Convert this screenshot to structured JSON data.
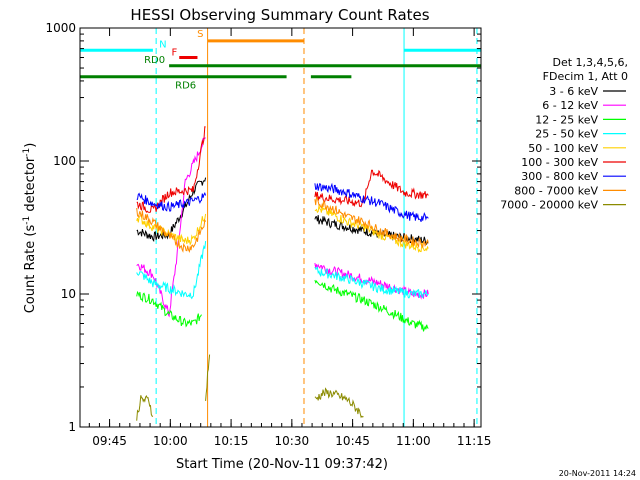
{
  "chart_data": {
    "type": "line",
    "title": "HESSI Observing Summary Count Rates",
    "xlabel": "Start Time (20-Nov-11 09:37:42)",
    "ylabel_prefix": "Count Rate (s",
    "ylabel_mid": " detector",
    "ylabel_suffix": ")",
    "ylabel_sup": "-1",
    "y_scale": "log",
    "ylim": [
      1,
      1000
    ],
    "y_tick_labels": [
      "1",
      "10",
      "100",
      "1000"
    ],
    "x_tick_labels": [
      "09:45",
      "10:00",
      "10:15",
      "10:30",
      "10:45",
      "11:00",
      "11:15"
    ],
    "x_range_minutes": [
      0,
      99
    ],
    "x_tick_minutes": [
      7.3,
      22.3,
      37.3,
      52.3,
      67.3,
      82.3,
      97.3
    ],
    "footer_timestamp": "20-Nov-2011 14:24",
    "legend": {
      "header_line1": "Det 1,3,4,5,6,",
      "header_line2": "FDecim 1, Att 0",
      "entries": [
        {
          "name": "3 - 6 keV",
          "color": "#000000"
        },
        {
          "name": "6 - 12 keV",
          "color": "#ff00ff"
        },
        {
          "name": "12 - 25 keV",
          "color": "#00ff00"
        },
        {
          "name": "25 - 50 keV",
          "color": "#00ffff"
        },
        {
          "name": "50 - 100 keV",
          "color": "#ffd000"
        },
        {
          "name": "100 - 300 keV",
          "color": "#ee0000"
        },
        {
          "name": "300 - 800 keV",
          "color": "#0000ff"
        },
        {
          "name": "800 - 7000 keV",
          "color": "#ff8c00"
        },
        {
          "name": "7000 - 20000 keV",
          "color": "#8b8b00"
        }
      ]
    },
    "flag_bars": [
      {
        "label": "N",
        "color": "#00ffff",
        "y": 680,
        "segments": [
          [
            0,
            18
          ],
          [
            80,
            99
          ]
        ]
      },
      {
        "label": "RD0",
        "color": "#008000",
        "y": 520,
        "segments": [
          [
            22,
            99
          ]
        ]
      },
      {
        "label": "RD6",
        "color": "#008000",
        "y": 430,
        "segments": [
          [
            0,
            51
          ],
          [
            57,
            67
          ]
        ]
      },
      {
        "label": "S",
        "color": "#ff8c00",
        "y": 800,
        "segments": [
          [
            31.5,
            55.3
          ]
        ]
      },
      {
        "label": "F",
        "color": "#ee0000",
        "y": 600,
        "segments": [
          [
            24.5,
            29
          ]
        ]
      }
    ],
    "vertical_markers": [
      {
        "minute": 18.8,
        "color": "#00ffff",
        "style": "dashed"
      },
      {
        "minute": 31.5,
        "color": "#ff8c00",
        "style": "solid"
      },
      {
        "minute": 55.3,
        "color": "#ff8c00",
        "style": "dashed"
      },
      {
        "minute": 80.0,
        "color": "#00ffff",
        "style": "solid"
      },
      {
        "minute": 98.0,
        "color": "#00ffff",
        "style": "dashed"
      }
    ],
    "series": [
      {
        "name": "3 - 6 keV",
        "color": "#000000",
        "segments": [
          {
            "t": [
              14,
              18,
              22,
              26,
              28,
              31
            ],
            "v": [
              30,
              27,
              28,
              45,
              60,
              75
            ]
          },
          {
            "t": [
              58,
              62,
              66,
              70,
              74,
              78,
              82,
              86
            ],
            "v": [
              37,
              34,
              32,
              30,
              28,
              27,
              26,
              25
            ]
          }
        ]
      },
      {
        "name": "6 - 12 keV",
        "color": "#ff00ff",
        "segments": [
          {
            "t": [
              14,
              18,
              22,
              24,
              26,
              28,
              31
            ],
            "v": [
              17,
              14,
              7,
              20,
              70,
              95,
              150
            ]
          },
          {
            "t": [
              58,
              62,
              66,
              70,
              74,
              78,
              82,
              86
            ],
            "v": [
              17,
              15,
              14,
              13,
              12,
              11,
              10,
              10
            ]
          }
        ]
      },
      {
        "name": "12 - 25 keV",
        "color": "#00ff00",
        "segments": [
          {
            "t": [
              14,
              18,
              22,
              26,
              28,
              30
            ],
            "v": [
              10,
              9,
              7,
              6,
              6,
              7
            ]
          },
          {
            "t": [
              58,
              62,
              66,
              70,
              74,
              78,
              82,
              86
            ],
            "v": [
              13,
              11,
              10,
              9,
              8,
              7,
              6,
              5.5
            ]
          }
        ]
      },
      {
        "name": "25 - 50 keV",
        "color": "#00ffff",
        "segments": [
          {
            "t": [
              14,
              18,
              22,
              26,
              28,
              31
            ],
            "v": [
              15,
              12,
              11,
              10,
              10,
              25
            ]
          },
          {
            "t": [
              58,
              62,
              66,
              70,
              74,
              78,
              82,
              86
            ],
            "v": [
              15,
              14,
              13,
              12,
              11,
              10.5,
              10,
              10
            ]
          }
        ]
      },
      {
        "name": "50 - 100 keV",
        "color": "#ffd000",
        "segments": [
          {
            "t": [
              14,
              18,
              22,
              26,
              28,
              31
            ],
            "v": [
              38,
              32,
              28,
              25,
              26,
              40
            ]
          },
          {
            "t": [
              58,
              62,
              66,
              70,
              74,
              78,
              82,
              86
            ],
            "v": [
              45,
              40,
              35,
              32,
              28,
              25,
              23,
              22
            ]
          }
        ]
      },
      {
        "name": "100 - 300 keV",
        "color": "#ee0000",
        "segments": [
          {
            "t": [
              14,
              18,
              22,
              26,
              28,
              31
            ],
            "v": [
              48,
              42,
              58,
              60,
              60,
              180
            ]
          },
          {
            "t": [
              58,
              62,
              66,
              70,
              72,
              76,
              80,
              86
            ],
            "v": [
              55,
              52,
              50,
              48,
              85,
              70,
              58,
              55
            ]
          }
        ]
      },
      {
        "name": "300 - 800 keV",
        "color": "#0000ff",
        "segments": [
          {
            "t": [
              14,
              18,
              22,
              26,
              28,
              31
            ],
            "v": [
              55,
              48,
              45,
              48,
              50,
              55
            ]
          },
          {
            "t": [
              58,
              62,
              66,
              70,
              74,
              78,
              82,
              86
            ],
            "v": [
              65,
              62,
              58,
              52,
              48,
              42,
              38,
              37
            ]
          }
        ]
      },
      {
        "name": "800 - 7000 keV",
        "color": "#ff8c00",
        "segments": [
          {
            "t": [
              14,
              18,
              22,
              26,
              28,
              31
            ],
            "v": [
              42,
              35,
              27,
              22,
              23,
              35
            ]
          },
          {
            "t": [
              58,
              62,
              66,
              70,
              74,
              78,
              82,
              86
            ],
            "v": [
              50,
              45,
              38,
              35,
              30,
              27,
              25,
              24
            ]
          }
        ]
      },
      {
        "name": "7000 - 20000 keV",
        "color": "#8b8b00",
        "segments": [
          {
            "t": [
              14,
              15,
              17,
              18
            ],
            "v": [
              1.2,
              1.6,
              1.6,
              1.2
            ]
          },
          {
            "t": [
              31,
              31.5,
              32
            ],
            "v": [
              1.5,
              2.5,
              3.5
            ]
          },
          {
            "t": [
              58,
              60,
              62,
              64,
              66,
              68,
              70
            ],
            "v": [
              1.6,
              1.8,
              1.8,
              1.7,
              1.6,
              1.4,
              1.2
            ]
          }
        ]
      }
    ]
  }
}
